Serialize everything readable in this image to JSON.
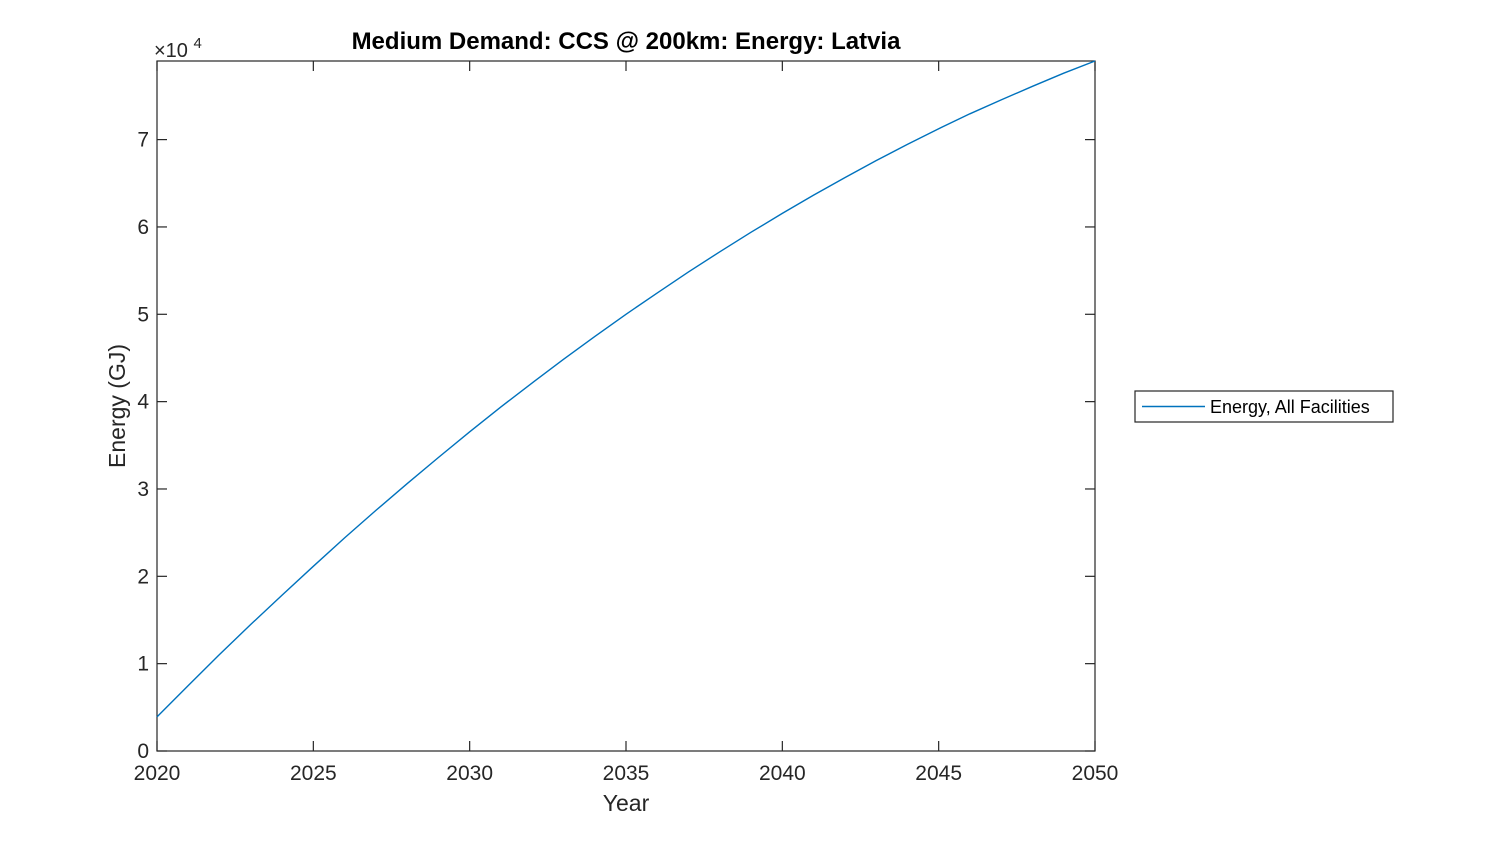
{
  "figure": {
    "background_color": "#ffffff",
    "axis_color": "#262626",
    "title_color": "#000000"
  },
  "chart_data": {
    "type": "line",
    "title": "Medium Demand: CCS @ 200km: Energy: Latvia",
    "xlabel": "Year",
    "ylabel": "Energy (GJ)",
    "y_exponent_base": "×10",
    "y_exponent_power": "4",
    "xlim": [
      2020,
      2050
    ],
    "ylim": [
      0,
      79000
    ],
    "grid": false,
    "box": true,
    "tick_direction": "in",
    "xticks": [
      2020,
      2025,
      2030,
      2035,
      2040,
      2045,
      2050
    ],
    "xtick_labels": [
      "2020",
      "2025",
      "2030",
      "2035",
      "2040",
      "2045",
      "2050"
    ],
    "yticks": [
      0,
      10000,
      20000,
      30000,
      40000,
      50000,
      60000,
      70000
    ],
    "ytick_labels": [
      "0",
      "1",
      "2",
      "3",
      "4",
      "5",
      "6",
      "7"
    ],
    "legend": {
      "position": "right-outside",
      "entries": [
        {
          "label": "Energy, All Facilities",
          "color": "#0072BD"
        }
      ]
    },
    "series": [
      {
        "name": "Energy, All Facilities",
        "color": "#0072BD",
        "x": [
          2020,
          2021,
          2022,
          2023,
          2024,
          2025,
          2026,
          2027,
          2028,
          2029,
          2030,
          2031,
          2032,
          2033,
          2034,
          2035,
          2036,
          2037,
          2038,
          2039,
          2040,
          2041,
          2042,
          2043,
          2044,
          2045,
          2046,
          2047,
          2048,
          2049,
          2050
        ],
        "values": [
          3900,
          7500,
          11050,
          14500,
          17850,
          21150,
          24400,
          27550,
          30600,
          33600,
          36550,
          39400,
          42150,
          44850,
          47450,
          50000,
          52450,
          54850,
          57150,
          59400,
          61550,
          63650,
          65650,
          67600,
          69450,
          71250,
          72950,
          74550,
          76100,
          77600,
          79000
        ]
      }
    ]
  }
}
